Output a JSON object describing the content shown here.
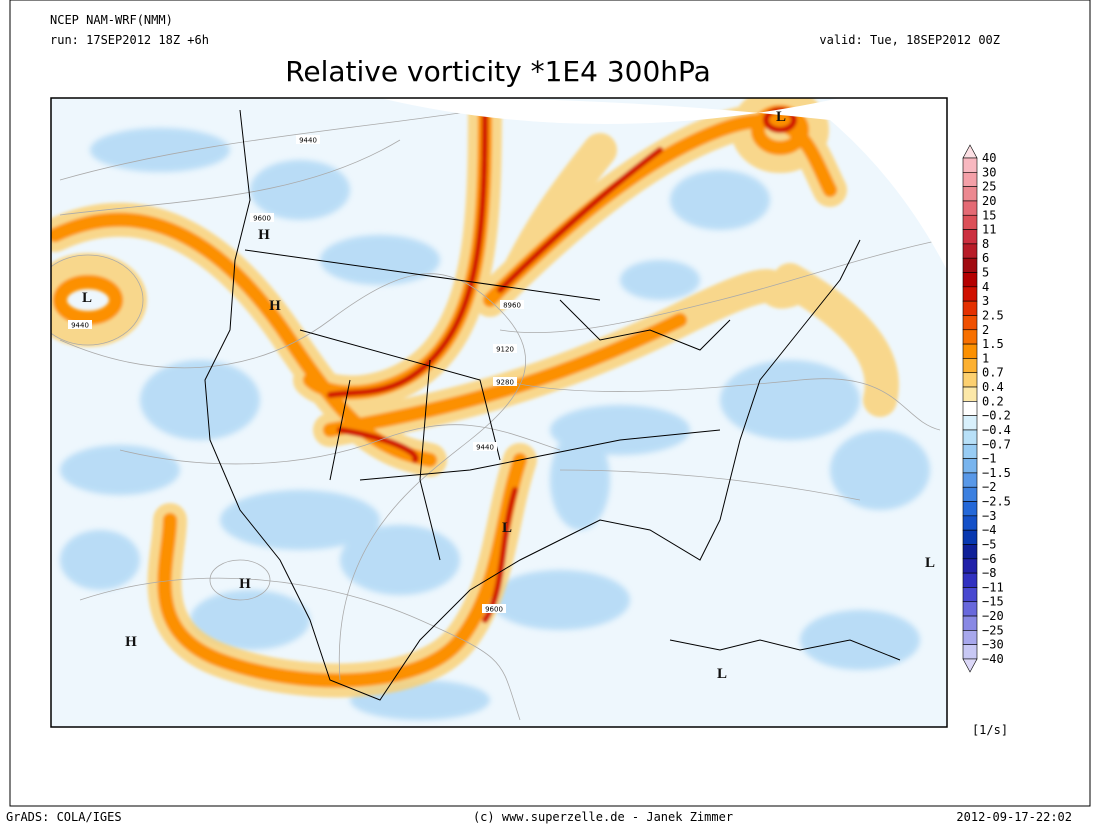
{
  "header": {
    "model": "NCEP NAM-WRF(NMM)",
    "run": "run: 17SEP2012 18Z +6h",
    "valid": "valid: Tue, 18SEP2012 00Z",
    "title": "Relative vorticity *1E4 300hPa"
  },
  "map": {
    "height_labels": [
      "9440",
      "9600",
      "9440",
      "8960",
      "9120",
      "9280",
      "9440",
      "9600"
    ],
    "centers": [
      "L",
      "L",
      "L",
      "L",
      "L",
      "H",
      "H",
      "H",
      "H"
    ]
  },
  "colorbar": {
    "levels": [
      "40",
      "30",
      "25",
      "20",
      "15",
      "11",
      "8",
      "6",
      "5",
      "4",
      "3",
      "2.5",
      "2",
      "1.5",
      "1",
      "0.7",
      "0.4",
      "0.2",
      "−0.2",
      "−0.4",
      "−0.7",
      "−1",
      "−1.5",
      "−2",
      "−2.5",
      "−3",
      "−4",
      "−5",
      "−6",
      "−8",
      "−11",
      "−15",
      "−20",
      "−25",
      "−30",
      "−40"
    ],
    "colors": [
      "#fce0e4",
      "#f8b8c0",
      "#f4a0a8",
      "#ec8890",
      "#e46a74",
      "#dc5058",
      "#cc3040",
      "#b81c28",
      "#a00a10",
      "#b40000",
      "#d01000",
      "#e43000",
      "#f05000",
      "#f87000",
      "#fc9000",
      "#fcb030",
      "#fcd070",
      "#fce8a8",
      "#ffffff",
      "#d8f0fc",
      "#b8e0f8",
      "#98ccf4",
      "#78b4ee",
      "#5898e8",
      "#3c80e0",
      "#2468d8",
      "#1450c8",
      "#0838b0",
      "#102098",
      "#2020a8",
      "#3030c0",
      "#4848d0",
      "#6868dc",
      "#8888e4",
      "#a8a8ec",
      "#c8c8f4",
      "#dcd8f8"
    ],
    "unit": "[1/s]"
  },
  "footer": {
    "software": "GrADS: COLA/IGES",
    "credit": "(c) www.superzelle.de - Janek Zimmer",
    "timestamp": "2012-09-17-22:02"
  }
}
